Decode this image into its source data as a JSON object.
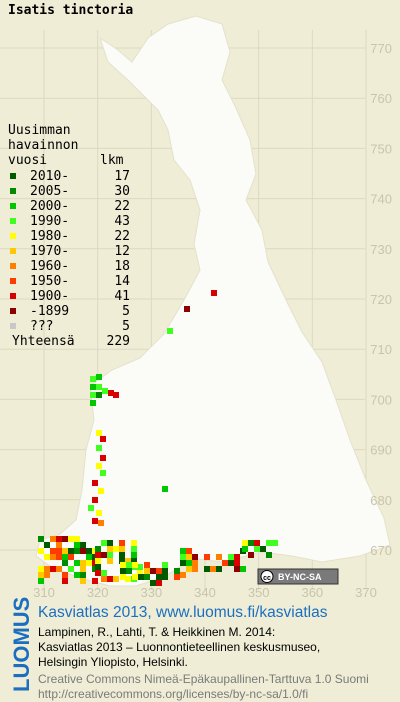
{
  "title": "Isatis tinctoria",
  "legend": {
    "header": [
      "Uusimman",
      "havainnon",
      "vuosi"
    ],
    "count_header": "lkm",
    "rows": [
      {
        "label": "2010-",
        "count": 17,
        "color": "#005a00"
      },
      {
        "label": "2005-",
        "count": 30,
        "color": "#008a00"
      },
      {
        "label": "2000-",
        "count": 22,
        "color": "#00c800"
      },
      {
        "label": "1990-",
        "count": 43,
        "color": "#40ff20"
      },
      {
        "label": "1980-",
        "count": 22,
        "color": "#ffff00"
      },
      {
        "label": "1970-",
        "count": 12,
        "color": "#ffc800"
      },
      {
        "label": "1960-",
        "count": 18,
        "color": "#ff8000"
      },
      {
        "label": "1950-",
        "count": 14,
        "color": "#ff3c00"
      },
      {
        "label": "1900-",
        "count": 41,
        "color": "#d80000"
      },
      {
        "label": "-1899",
        "count": 5,
        "color": "#8c0000"
      },
      {
        "label": "???",
        "count": 5,
        "color": "#c8c8c8"
      }
    ],
    "total_label": "Yhteensä",
    "total": 229
  },
  "map": {
    "xticks": [
      310,
      320,
      330,
      340,
      350,
      360,
      370
    ],
    "yticks": [
      670,
      680,
      690,
      700,
      710,
      720,
      730,
      740,
      750,
      760,
      770
    ]
  },
  "badge": {
    "icon": "cc",
    "text": "BY-NC-SA"
  },
  "footer": {
    "logo": "LUOMUS",
    "headline": "Kasviatlas 2013, www.luomus.fi/kasviatlas",
    "citation": [
      "Lampinen, R., Lahti, T. & Heikkinen M. 2014:",
      "Kasviatlas 2013 – Luonnontieteellinen keskusmuseo,",
      "Helsingin Yliopisto, Helsinki."
    ],
    "license": [
      "Creative Commons Nimeä-Epäkaupallinen-Tarttuva 1.0 Suomi",
      "http://creativecommons.org/licenses/by-nc-sa/1.0/fi"
    ]
  }
}
